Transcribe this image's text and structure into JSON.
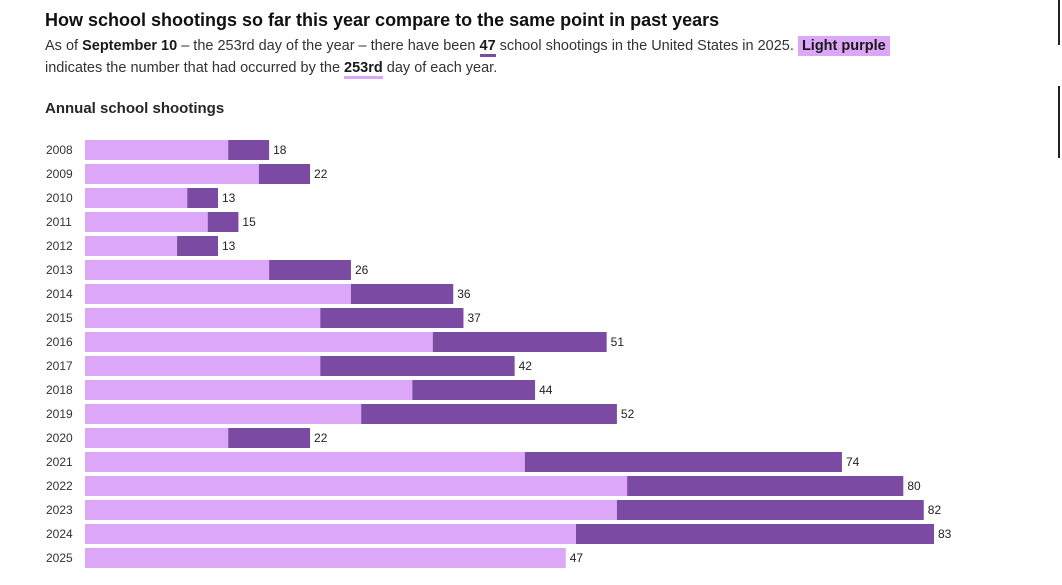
{
  "title": "How school shootings so far this year compare to the same point in past years",
  "subtitle": {
    "p1": "As of",
    "date": "September 10",
    "p2": "– the 253rd day of the year – there have been",
    "count": "47",
    "p3": "school shootings in the United States in 2025.",
    "highlight": "Light purple",
    "p4": "indicates the number that had occurred by the",
    "day": "253rd",
    "p5": "day of each year."
  },
  "section_label": "Annual school shootings",
  "colors": {
    "light_purple": "#dca7f7",
    "dark_purple": "#7b4aa3"
  },
  "chart_data": {
    "type": "bar",
    "orientation": "horizontal",
    "stacked": true,
    "title": "Annual school shootings",
    "categories": [
      "2008",
      "2009",
      "2010",
      "2011",
      "2012",
      "2013",
      "2014",
      "2015",
      "2016",
      "2017",
      "2018",
      "2019",
      "2020",
      "2021",
      "2022",
      "2023",
      "2024",
      "2025"
    ],
    "series": [
      {
        "color": "#dca7f7",
        "values": [
          14,
          17,
          10,
          12,
          9,
          18,
          26,
          23,
          34,
          23,
          32,
          27,
          14,
          43,
          53,
          52,
          48,
          47
        ]
      },
      {
        "color": "#7b4aa3",
        "values": [
          4,
          5,
          3,
          3,
          4,
          8,
          10,
          14,
          17,
          19,
          12,
          25,
          8,
          31,
          27,
          30,
          35,
          0
        ]
      }
    ],
    "totals": [
      18,
      22,
      13,
      15,
      13,
      26,
      36,
      37,
      51,
      42,
      44,
      52,
      22,
      74,
      80,
      82,
      83,
      47
    ],
    "xlim": [
      0,
      83
    ],
    "grid": false,
    "legend": "none"
  }
}
